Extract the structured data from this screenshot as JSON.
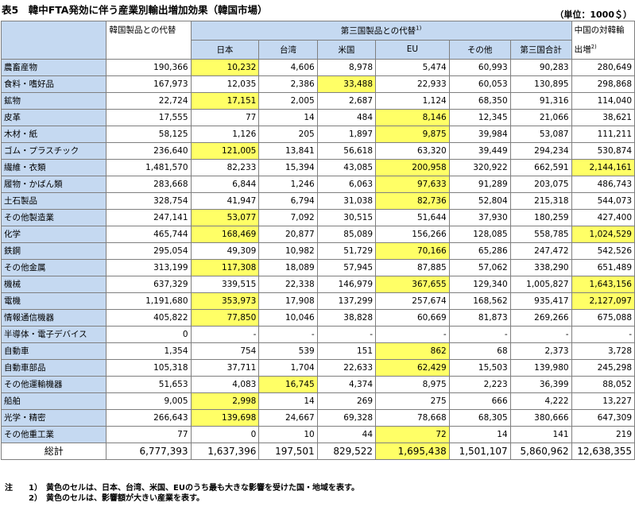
{
  "title": "表5　韓中FTA発効に伴う産業別輸出増加効果（韓国市場）",
  "unit": "（単位：1000＄）",
  "header": {
    "korea_col": "韓国製品との代替",
    "third_group": "第三国製品との代替",
    "third_group_note": "1)",
    "china_col": "中国の対韓輸出増",
    "china_col_note": "2)",
    "subcols": [
      "日本",
      "台湾",
      "米国",
      "EU",
      "その他",
      "第三国合計"
    ]
  },
  "highlight_color": "#ffff66",
  "category_color": "#c5d9f1",
  "rows": [
    {
      "name": "農畜産物",
      "values": [
        "190,366",
        "10,232",
        "4,606",
        "8,978",
        "5,474",
        "60,993",
        "90,283",
        "280,649"
      ],
      "hl": [
        1
      ]
    },
    {
      "name": "食料・嗜好品",
      "values": [
        "167,973",
        "12,035",
        "2,386",
        "33,488",
        "22,933",
        "60,053",
        "130,895",
        "298,868"
      ],
      "hl": [
        3
      ]
    },
    {
      "name": "鉱物",
      "values": [
        "22,724",
        "17,151",
        "2,005",
        "2,687",
        "1,124",
        "68,350",
        "91,316",
        "114,040"
      ],
      "hl": [
        1
      ]
    },
    {
      "name": "皮革",
      "values": [
        "17,555",
        "77",
        "14",
        "484",
        "8,146",
        "12,345",
        "21,066",
        "38,621"
      ],
      "hl": [
        4
      ]
    },
    {
      "name": "木材・紙",
      "values": [
        "58,125",
        "1,126",
        "205",
        "1,897",
        "9,875",
        "39,984",
        "53,087",
        "111,211"
      ],
      "hl": [
        4
      ]
    },
    {
      "name": "ゴム・プラスチック",
      "values": [
        "236,640",
        "121,005",
        "13,841",
        "56,618",
        "63,320",
        "39,449",
        "294,234",
        "530,874"
      ],
      "hl": [
        1
      ]
    },
    {
      "name": "繊維・衣類",
      "values": [
        "1,481,570",
        "82,233",
        "15,394",
        "43,085",
        "200,958",
        "320,922",
        "662,591",
        "2,144,161"
      ],
      "hl": [
        4,
        7
      ]
    },
    {
      "name": "履物・かばん類",
      "values": [
        "283,668",
        "6,844",
        "1,246",
        "6,063",
        "97,633",
        "91,289",
        "203,075",
        "486,743"
      ],
      "hl": [
        4
      ]
    },
    {
      "name": "土石製品",
      "values": [
        "328,754",
        "41,947",
        "6,794",
        "31,038",
        "82,736",
        "52,804",
        "215,318",
        "544,073"
      ],
      "hl": [
        4
      ]
    },
    {
      "name": "その他製造業",
      "values": [
        "247,141",
        "53,077",
        "7,092",
        "30,515",
        "51,644",
        "37,930",
        "180,259",
        "427,400"
      ],
      "hl": [
        1
      ]
    },
    {
      "name": "化学",
      "values": [
        "465,744",
        "168,469",
        "20,877",
        "85,089",
        "156,266",
        "128,085",
        "558,785",
        "1,024,529"
      ],
      "hl": [
        1,
        7
      ]
    },
    {
      "name": "鉄鋼",
      "values": [
        "295,054",
        "49,309",
        "10,982",
        "51,729",
        "70,166",
        "65,286",
        "247,472",
        "542,526"
      ],
      "hl": [
        4
      ]
    },
    {
      "name": "その他金属",
      "values": [
        "313,199",
        "117,308",
        "18,089",
        "57,945",
        "87,885",
        "57,062",
        "338,290",
        "651,489"
      ],
      "hl": [
        1
      ]
    },
    {
      "name": "機械",
      "values": [
        "637,329",
        "339,515",
        "22,338",
        "146,979",
        "367,655",
        "129,340",
        "1,005,827",
        "1,643,156"
      ],
      "hl": [
        4,
        7
      ]
    },
    {
      "name": "電機",
      "values": [
        "1,191,680",
        "353,973",
        "17,908",
        "137,299",
        "257,674",
        "168,562",
        "935,417",
        "2,127,097"
      ],
      "hl": [
        1,
        7
      ]
    },
    {
      "name": "情報通信機器",
      "values": [
        "405,822",
        "77,850",
        "10,046",
        "38,828",
        "60,669",
        "81,873",
        "269,266",
        "675,088"
      ],
      "hl": [
        1
      ]
    },
    {
      "name": "半導体・電子デバイス",
      "values": [
        "0",
        "-",
        "-",
        "-",
        "-",
        "-",
        "-",
        "-"
      ],
      "hl": []
    },
    {
      "name": "自動車",
      "values": [
        "1,354",
        "754",
        "539",
        "151",
        "862",
        "68",
        "2,373",
        "3,728"
      ],
      "hl": [
        4
      ]
    },
    {
      "name": "自動車部品",
      "values": [
        "105,318",
        "37,711",
        "1,704",
        "22,633",
        "62,429",
        "15,503",
        "139,980",
        "245,298"
      ],
      "hl": [
        4
      ]
    },
    {
      "name": "その他運輸機器",
      "values": [
        "51,653",
        "4,083",
        "16,745",
        "4,374",
        "8,975",
        "2,223",
        "36,399",
        "88,052"
      ],
      "hl": [
        2
      ]
    },
    {
      "name": "船舶",
      "values": [
        "9,005",
        "2,998",
        "14",
        "269",
        "275",
        "666",
        "4,222",
        "13,227"
      ],
      "hl": [
        1
      ]
    },
    {
      "name": "光学・精密",
      "values": [
        "266,643",
        "139,698",
        "24,667",
        "69,328",
        "78,668",
        "68,305",
        "380,666",
        "647,309"
      ],
      "hl": [
        1
      ]
    },
    {
      "name": "その他重工業",
      "values": [
        "77",
        "0",
        "10",
        "44",
        "72",
        "14",
        "141",
        "219"
      ],
      "hl": [
        4
      ]
    }
  ],
  "total": {
    "label": "総計",
    "values": [
      "6,777,393",
      "1,637,396",
      "197,501",
      "829,522",
      "1,695,438",
      "1,501,107",
      "5,860,962",
      "12,638,355"
    ],
    "hl": [
      4
    ]
  },
  "notes": {
    "lead": "注",
    "items": [
      {
        "num": "1）",
        "text": "黄色のセルは、日本、台湾、米国、EUのうち最も大きな影響を受けた国・地域を表す。"
      },
      {
        "num": "2）",
        "text": "黄色のセルは、影響額が大きい産業を表す。"
      }
    ]
  }
}
